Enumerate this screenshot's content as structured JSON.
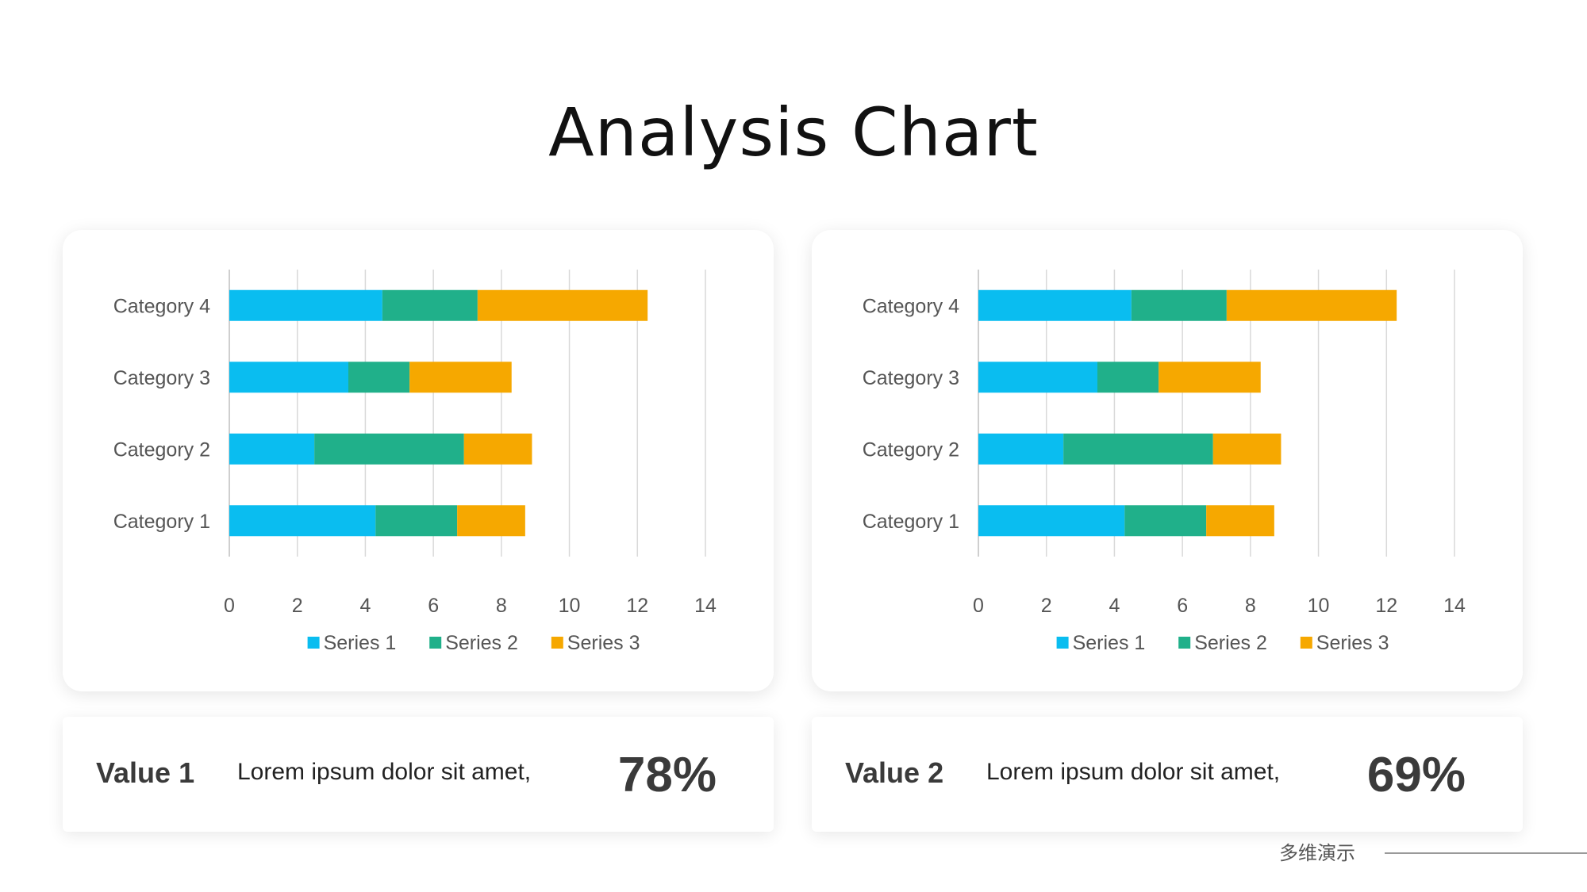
{
  "title": "Analysis Chart",
  "colors": {
    "series1": "#0ABDF0",
    "series2": "#20B08A",
    "series3": "#F6A800"
  },
  "chart_data": [
    {
      "type": "bar",
      "orientation": "horizontal",
      "stacked": true,
      "categories": [
        "Category 1",
        "Category 2",
        "Category 3",
        "Category 4"
      ],
      "series": [
        {
          "name": "Series 1",
          "values": [
            4.3,
            2.5,
            3.5,
            4.5
          ]
        },
        {
          "name": "Series 2",
          "values": [
            2.4,
            4.4,
            1.8,
            2.8
          ]
        },
        {
          "name": "Series 3",
          "values": [
            2.0,
            2.0,
            3.0,
            5.0
          ]
        }
      ],
      "xlim": [
        0,
        14
      ],
      "xticks": [
        "0",
        "2",
        "4",
        "6",
        "8",
        "10",
        "12",
        "14"
      ],
      "grid": true,
      "legend": "bottom"
    },
    {
      "type": "bar",
      "orientation": "horizontal",
      "stacked": true,
      "categories": [
        "Category 1",
        "Category 2",
        "Category 3",
        "Category 4"
      ],
      "series": [
        {
          "name": "Series 1",
          "values": [
            4.3,
            2.5,
            3.5,
            4.5
          ]
        },
        {
          "name": "Series 2",
          "values": [
            2.4,
            4.4,
            1.8,
            2.8
          ]
        },
        {
          "name": "Series 3",
          "values": [
            2.0,
            2.0,
            3.0,
            5.0
          ]
        }
      ],
      "xlim": [
        0,
        14
      ],
      "xticks": [
        "0",
        "2",
        "4",
        "6",
        "8",
        "10",
        "12",
        "14"
      ],
      "grid": true,
      "legend": "bottom"
    }
  ],
  "values": [
    {
      "label": "Value 1",
      "text": "Lorem ipsum dolor sit amet,",
      "percent": "78%"
    },
    {
      "label": "Value 2",
      "text": "Lorem ipsum dolor sit amet,",
      "percent": "69%"
    }
  ],
  "footer": {
    "text": "多维演示"
  }
}
